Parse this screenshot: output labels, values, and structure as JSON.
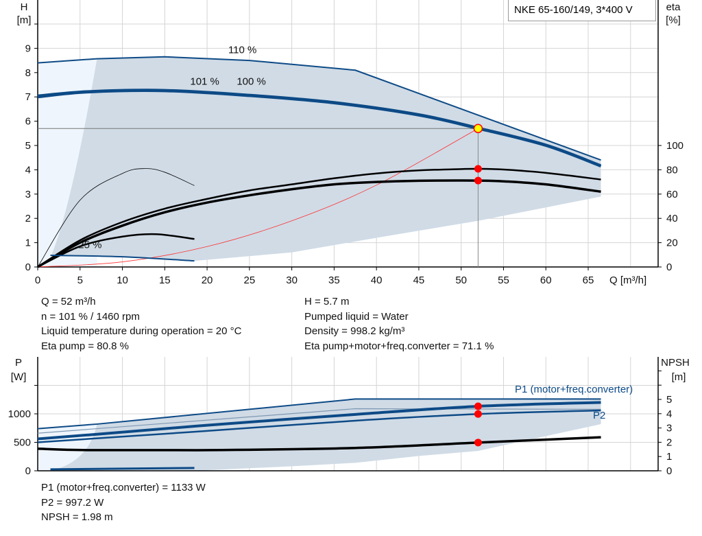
{
  "chart_data": [
    {
      "type": "line",
      "title": "NKE 65-160/149, 3*400 V",
      "xlabel": "Q [m³/h]",
      "ylabel_left": "H\n[m]",
      "ylabel_right": "eta\n[%]",
      "xlim": [
        0,
        73
      ],
      "ylim_left": [
        0,
        11
      ],
      "ylim_right": [
        0,
        220
      ],
      "x_ticks": [
        "0",
        "5",
        "10",
        "15",
        "20",
        "25",
        "30",
        "35",
        "40",
        "45",
        "50",
        "55",
        "60",
        "65"
      ],
      "y_ticks_left": [
        "0",
        "1",
        "2",
        "3",
        "4",
        "5",
        "6",
        "7",
        "8",
        "9"
      ],
      "y_ticks_right": [
        "0",
        "20",
        "40",
        "60",
        "80",
        "100"
      ],
      "grid": true,
      "curve_labels": [
        "110 %",
        "101 %",
        "100 %",
        "25 %"
      ],
      "head_series": [
        {
          "name": "110 %",
          "x": [
            0,
            7,
            15,
            25,
            37.5,
            66.5
          ],
          "y": [
            8.4,
            8.57,
            8.65,
            8.5,
            8.1,
            4.4
          ]
        },
        {
          "name": "101 %",
          "x": [
            0,
            6,
            15,
            25,
            35,
            45,
            52,
            60,
            66.5
          ],
          "y": [
            7.07,
            7.25,
            7.3,
            7.1,
            6.8,
            6.3,
            5.75,
            5.05,
            4.2
          ]
        },
        {
          "name": "100 %",
          "x": [
            0,
            6,
            15,
            25,
            35,
            45,
            52,
            60,
            66.5
          ],
          "y": [
            7.0,
            7.2,
            7.25,
            7.05,
            6.75,
            6.25,
            5.7,
            5.0,
            4.15
          ]
        },
        {
          "name": "25 %",
          "x": [
            1.5,
            10,
            18.5
          ],
          "y": [
            0.48,
            0.42,
            0.25
          ]
        }
      ],
      "system_curve": {
        "x": [
          0,
          10,
          20,
          30,
          40,
          52
        ],
        "y": [
          0,
          0.21,
          0.84,
          1.9,
          3.37,
          5.7
        ]
      },
      "eta_series": [
        {
          "x": [
            0,
            5,
            10,
            15,
            20,
            25,
            30,
            35,
            40,
            45,
            50,
            52,
            55,
            60,
            66.5
          ],
          "y": [
            0,
            22,
            37,
            48,
            56,
            63,
            68,
            73,
            77,
            79.5,
            80.6,
            80.8,
            80.2,
            77.5,
            72
          ]
        },
        {
          "x": [
            0,
            5,
            10,
            15,
            20,
            25,
            30,
            35,
            40,
            45,
            50,
            52,
            55,
            60,
            66.5
          ],
          "y": [
            0,
            20,
            34,
            45,
            53,
            59,
            64,
            68,
            70,
            71,
            71.2,
            71.1,
            70.5,
            68,
            62
          ]
        },
        {
          "x": [
            0,
            5,
            10,
            12.7,
            15,
            18.5
          ],
          "y": [
            0,
            55,
            77,
            81,
            78,
            67
          ]
        },
        {
          "x": [
            0,
            5,
            10,
            14,
            18.5
          ],
          "y": [
            0,
            17,
            25,
            27,
            23
          ]
        }
      ],
      "operating_region_lower": {
        "x": [
          18.5,
          30,
          40,
          52,
          66.5
        ],
        "y": [
          0.25,
          0.6,
          1.2,
          1.9,
          2.9
        ]
      },
      "duty_point": {
        "Q": 52,
        "H": 5.7,
        "eta_pump": 80.8,
        "eta_total": 71.1
      }
    },
    {
      "type": "line",
      "xlim": [
        0,
        73
      ],
      "ylabel_left": "P\n[W]",
      "ylabel_right": "NPSH\n[m]",
      "ylim_left": [
        0,
        2000
      ],
      "ylim_right": [
        0,
        8
      ],
      "y_ticks_left": [
        "0",
        "500",
        "1000"
      ],
      "y_ticks_right": [
        "0",
        "1",
        "2",
        "3",
        "4",
        "5"
      ],
      "grid": true,
      "series_labels": [
        "P1 (motor+freq.converter)",
        "P2"
      ],
      "power_series": [
        {
          "name": "P1 (motor+freq.converter)",
          "x": [
            0,
            6,
            20,
            37.5,
            52,
            66.5
          ],
          "y": [
            560,
            630,
            800,
            990,
            1133,
            1200
          ]
        },
        {
          "name": "P2",
          "x": [
            0,
            6,
            20,
            37.5,
            52,
            66.5
          ],
          "y": [
            500,
            560,
            700,
            880,
            997,
            1060
          ]
        },
        {
          "x": [
            0,
            7,
            37.5,
            66.5
          ],
          "y": [
            740,
            820,
            1260,
            1260
          ]
        },
        {
          "x": [
            0,
            7,
            37.5,
            66.5
          ],
          "y": [
            660,
            740,
            1090,
            1080
          ]
        },
        {
          "x": [
            1.5,
            18.5
          ],
          "y": [
            25,
            50
          ]
        }
      ],
      "npsh_series": {
        "x": [
          0,
          6,
          20,
          37.5,
          52,
          66.5
        ],
        "y": [
          1.55,
          1.45,
          1.45,
          1.6,
          1.98,
          2.35
        ]
      },
      "region_lower": {
        "x": [
          18.5,
          30,
          37.5,
          45,
          52,
          66.5
        ],
        "y": [
          0,
          80,
          140,
          260,
          350,
          820
        ]
      },
      "duty_point": {
        "Q": 52,
        "P1": 1133,
        "P2": 997.2,
        "NPSH": 1.98
      }
    }
  ],
  "info_top": {
    "left": [
      "Q = 52 m³/h",
      "n = 101 % / 1460 rpm",
      "Liquid temperature during operation = 20 °C",
      "Eta pump = 80.8 %"
    ],
    "right": [
      "H = 5.7 m",
      "Pumped liquid = Water",
      "Density = 998.2 kg/m³",
      "Eta pump+motor+freq.converter = 71.1 %"
    ]
  },
  "info_bottom": [
    "P1 (motor+freq.converter) = 1133 W",
    "P2 = 997.2 W",
    "NPSH = 1.98 m"
  ],
  "colors": {
    "curve_blue": "#0d4a86",
    "region": "#d0dbe6",
    "region_light": "#eef5fc",
    "duty": "#ff0000",
    "duty_fill": "#ffff00",
    "grid": "#d4d4d4"
  }
}
